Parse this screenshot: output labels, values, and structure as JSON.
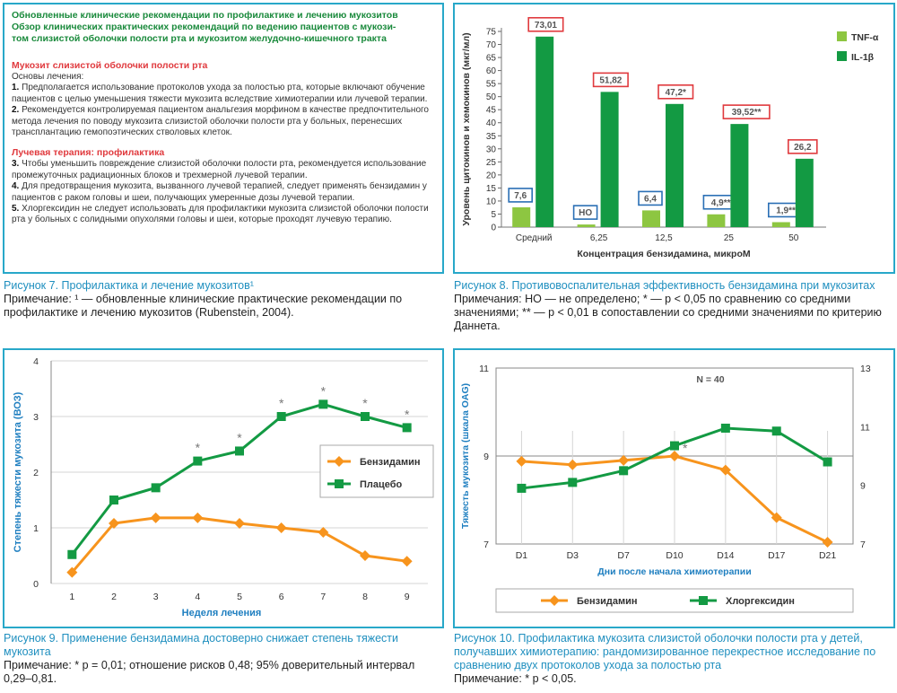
{
  "fig7": {
    "title_lines": [
      "Обновленные клинические рекомендации по профилактике и лечению мукозитов",
      "Обзор клинических практических рекомендаций по ведению пациентов с мукози-",
      "том слизистой оболочки полости рта и мукозитом желудочно-кишечного тракта"
    ],
    "section1": "Мукозит слизистой оболочки полости рта",
    "basics": "Основы лечения:",
    "items1": [
      {
        "num": "1.",
        "text": "Предполагается использование протоколов ухода за полостью рта, которые включают обучение пациентов с целью уменьшения тяжести мукозита вследствие химиотерапии или лучевой терапии."
      },
      {
        "num": "2.",
        "text": "Рекомендуется контролируемая пациентом анальгезия морфином в качестве предпочтительного метода лечения по поводу мукозита слизистой оболочки полости рта у больных, перенесших трансплантацию гемопоэтических стволовых клеток."
      }
    ],
    "section2": "Лучевая терапия: профилактика",
    "items2": [
      {
        "num": "3.",
        "text": "Чтобы уменьшить повреждение слизистой оболочки полости рта, рекомендуется использование промежуточных радиационных блоков и трехмерной лучевой терапии."
      },
      {
        "num": "4.",
        "text": "Для предотвращения мукозита, вызванного лучевой терапией, следует применять бензидамин у пациентов с раком головы и шеи, получающих умеренные дозы лучевой терапии."
      },
      {
        "num": "5.",
        "text": "Хлоргексидин не следует использовать для профилактики мукозита слизистой оболочки полости рта у больных с солидными опухолями головы и шеи, которые проходят лучевую терапию."
      }
    ],
    "caption": "Рисунок 7. Профилактика и лечение мукозитов¹",
    "note": "Примечание: ¹ — обновленные клинические практические рекомендации по профилактике и лечению мукозитов (Rubenstein, 2004)."
  },
  "fig8": {
    "caption": "Рисунок 8. Противовоспалительная эффективность бензидамина при мукозитах",
    "note": "Примечания: НО — не определено; * — p < 0,05 по сравнению со средними значениями; ** — p < 0,01 в сопоставлении со средними значениями по критерию Даннета."
  },
  "fig9": {
    "caption": "Рисунок 9. Применение бензидамина достоверно снижает степень тяжести мукозита",
    "note": "Примечание: * p = 0,01; отношение рисков 0,48; 95% доверительный интервал 0,29–0,81."
  },
  "fig10": {
    "caption": "Рисунок 10. Профилактика мукозита слизистой оболочки полости рта у детей, получавших химиотерапию: рандомизированное перекрестное исследование по сравнению двух протоколов ухода за полостью рта",
    "note": "Примечание: * p < 0,05."
  },
  "chart_data": [
    {
      "type": "bar",
      "ylabel": "Уровень цитокинов и хемокинов (мкг/мл)",
      "xlabel": "Концентрация бензидамина, микроМ",
      "categories": [
        "Средний",
        "6,25",
        "12,5",
        "25",
        "50"
      ],
      "ylim": [
        0,
        75
      ],
      "yticks": [
        0,
        5,
        10,
        15,
        20,
        25,
        30,
        35,
        40,
        45,
        50,
        55,
        60,
        65,
        70,
        75
      ],
      "legend_position": "top-right",
      "series": [
        {
          "name": "TNF-α",
          "color": "#8dc641",
          "values": [
            7.6,
            1.0,
            6.4,
            4.9,
            1.9
          ],
          "labels": [
            "7,6",
            "НО",
            "6,4",
            "4,9**",
            "1,9**"
          ],
          "label_box": "#2a6fb5"
        },
        {
          "name": "IL-1β",
          "color": "#139a43",
          "values": [
            73.01,
            51.82,
            47.2,
            39.52,
            26.2
          ],
          "labels": [
            "73,01",
            "51,82",
            "47,2*",
            "39,52**",
            "26,2"
          ],
          "label_box": "#e03a3e"
        }
      ]
    },
    {
      "type": "line",
      "ylabel": "Степень тяжести мукозита (ВОЗ)",
      "xlabel": "Неделя лечения",
      "x": [
        1,
        2,
        3,
        4,
        5,
        6,
        7,
        8,
        9
      ],
      "ylim": [
        0,
        4
      ],
      "yticks": [
        0,
        1,
        2,
        3,
        4
      ],
      "legend_position": "center-right",
      "series": [
        {
          "name": "Бензидамин",
          "color": "#f7941d",
          "marker": "diamond",
          "values": [
            0.2,
            1.08,
            1.18,
            1.18,
            1.08,
            1.0,
            0.92,
            0.5,
            0.4
          ]
        },
        {
          "name": "Плацебо",
          "color": "#139a43",
          "marker": "square",
          "values": [
            0.52,
            1.5,
            1.72,
            2.2,
            2.38,
            3.0,
            3.22,
            3.0,
            2.8
          ]
        }
      ],
      "significance_x": [
        4,
        5,
        6,
        7,
        8,
        9
      ],
      "significance_mark": "*"
    },
    {
      "type": "line",
      "title": "N = 40",
      "ylabel": "Тяжесть мукозита (шкала OAG)",
      "xlabel": "Дни после начала химиотерапии",
      "categories": [
        "D1",
        "D3",
        "D7",
        "D10",
        "D14",
        "D17",
        "D21"
      ],
      "ylim_left": [
        7,
        11
      ],
      "yticks_left": [
        7,
        9,
        11
      ],
      "ylim_right": [
        7,
        13
      ],
      "yticks_right": [
        7,
        9,
        11,
        13
      ],
      "legend_position": "bottom",
      "series": [
        {
          "name": "Бензидамин",
          "color": "#f7941d",
          "marker": "diamond",
          "axis": "left",
          "values": [
            8.88,
            8.8,
            8.9,
            9.0,
            8.68,
            7.6,
            7.04
          ]
        },
        {
          "name": "Хлоргексидин",
          "color": "#139a43",
          "marker": "square",
          "axis": "right",
          "values": [
            8.9,
            9.1,
            9.5,
            10.35,
            10.95,
            10.85,
            9.8
          ]
        }
      ],
      "significance_category": "D10",
      "significance_mark": "*"
    }
  ]
}
